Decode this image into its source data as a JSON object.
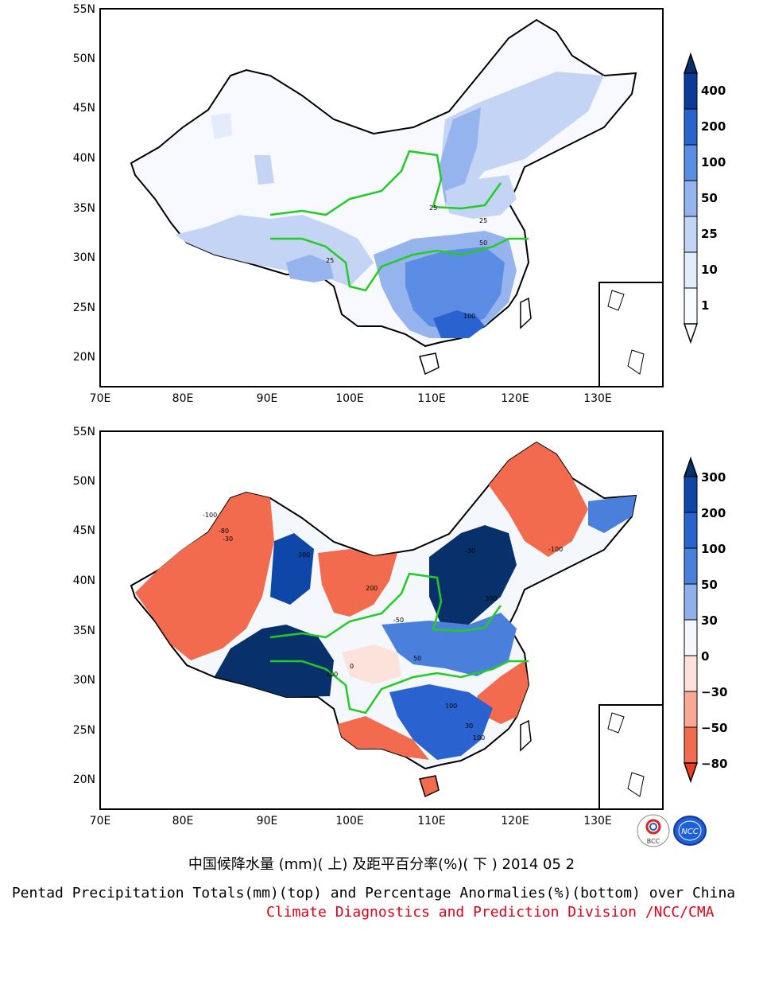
{
  "top_map": {
    "lat_labels": [
      "55N",
      "50N",
      "45N",
      "40N",
      "35N",
      "30N",
      "25N",
      "20N"
    ],
    "lon_labels": [
      "70E",
      "80E",
      "90E",
      "100E",
      "110E",
      "120E",
      "130E"
    ],
    "contour_labels": [
      "25",
      "25",
      "25",
      "50",
      "100"
    ],
    "legend": {
      "levels": [
        "1",
        "10",
        "25",
        "50",
        "100",
        "200",
        "400"
      ],
      "colors": [
        "#ffffff",
        "#e3ecfb",
        "#c3d4f4",
        "#95b4ee",
        "#5c8de4",
        "#2a62d0",
        "#0b3a9a",
        "#08306b"
      ]
    }
  },
  "bottom_map": {
    "lat_labels": [
      "55N",
      "50N",
      "45N",
      "40N",
      "35N",
      "30N",
      "25N",
      "20N"
    ],
    "lon_labels": [
      "70E",
      "80E",
      "90E",
      "100E",
      "110E",
      "120E",
      "130E"
    ],
    "contour_labels": [
      "-100",
      "-80",
      "-30",
      "300",
      "200",
      "100",
      "50",
      "-50",
      "0",
      "30",
      "-100",
      "200",
      "300",
      "100",
      "-30"
    ],
    "legend": {
      "levels": [
        "300",
        "200",
        "100",
        "50",
        "30",
        "0",
        "−30",
        "−50",
        "−80"
      ],
      "colors": [
        "#08306b",
        "#0f47a8",
        "#2a62d0",
        "#4a80dc",
        "#8fb0ea",
        "#f4f8fd",
        "#fbe3dc",
        "#f8a893",
        "#f26b4e",
        "#ed3d24"
      ]
    }
  },
  "captions": {
    "cn": "中国候降水量 (mm)( 上) 及距平百分率(%)( 下 ) 2014 05 2",
    "en": "Pentad Precipitation Totals(mm)(top) and Percentage Anormalies(%)(bottom) over China",
    "credit": "Climate Diagnostics and Prediction Division /NCC/CMA"
  },
  "logos": {
    "bcc": "BCC",
    "ncc": "NCC"
  }
}
